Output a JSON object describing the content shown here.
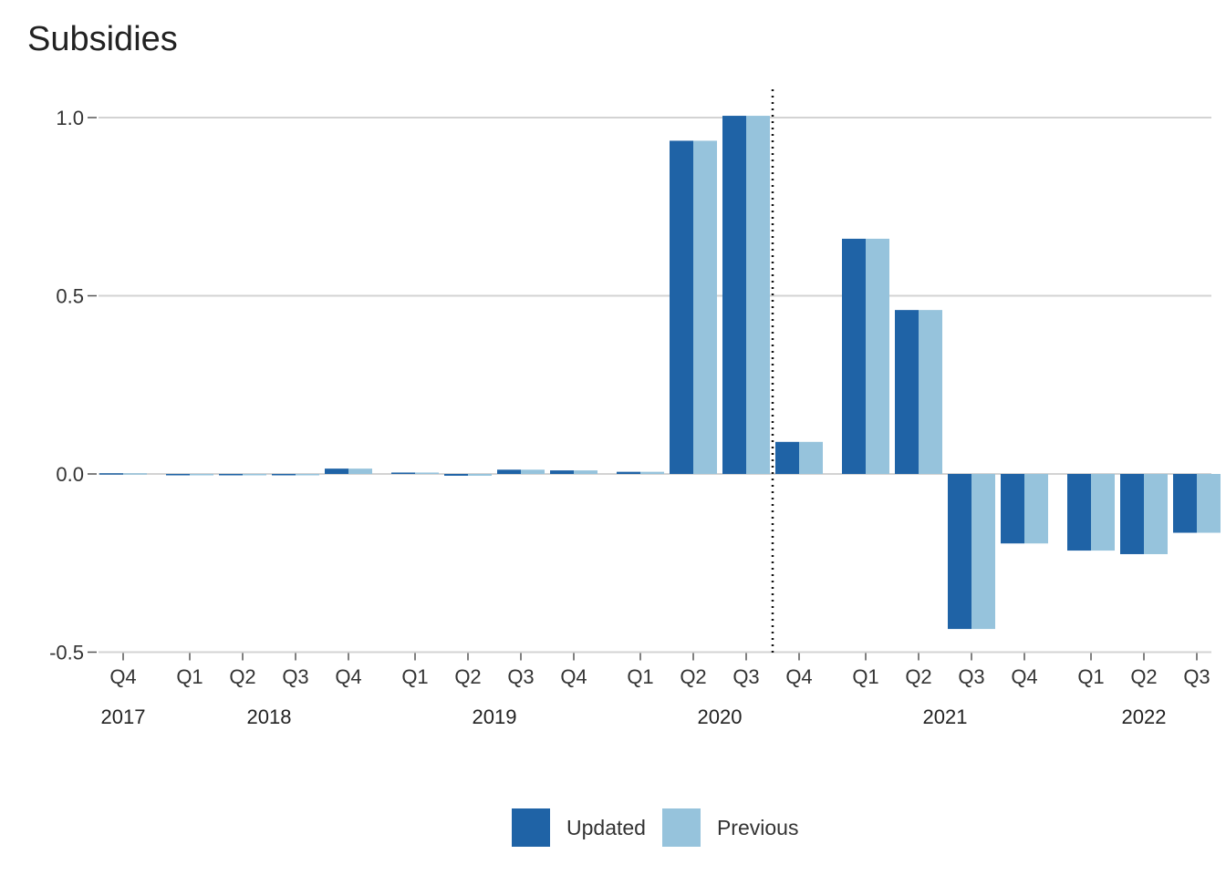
{
  "chart_data": {
    "type": "bar",
    "title": "Subsidies",
    "xlabel": "",
    "ylabel": "",
    "ylim": [
      -0.5,
      1.0
    ],
    "yticks": [
      -0.5,
      0.0,
      0.5,
      1.0
    ],
    "ytick_labels": [
      "-0.5",
      "0.0",
      "0.5",
      "1.0"
    ],
    "grid": true,
    "categories": [
      {
        "quarter": "Q4",
        "year": "2017"
      },
      {
        "quarter": "Q1",
        "year": "2018"
      },
      {
        "quarter": "Q2",
        "year": "2018"
      },
      {
        "quarter": "Q3",
        "year": "2018"
      },
      {
        "quarter": "Q4",
        "year": "2018"
      },
      {
        "quarter": "Q1",
        "year": "2019"
      },
      {
        "quarter": "Q2",
        "year": "2019"
      },
      {
        "quarter": "Q3",
        "year": "2019"
      },
      {
        "quarter": "Q4",
        "year": "2019"
      },
      {
        "quarter": "Q1",
        "year": "2020"
      },
      {
        "quarter": "Q2",
        "year": "2020"
      },
      {
        "quarter": "Q3",
        "year": "2020"
      },
      {
        "quarter": "Q4",
        "year": "2020"
      },
      {
        "quarter": "Q1",
        "year": "2021"
      },
      {
        "quarter": "Q2",
        "year": "2021"
      },
      {
        "quarter": "Q3",
        "year": "2021"
      },
      {
        "quarter": "Q4",
        "year": "2021"
      },
      {
        "quarter": "Q1",
        "year": "2022"
      },
      {
        "quarter": "Q2",
        "year": "2022"
      },
      {
        "quarter": "Q3",
        "year": "2022"
      }
    ],
    "years": [
      "2017",
      "2018",
      "2019",
      "2020",
      "2021",
      "2022"
    ],
    "series": [
      {
        "name": "Updated",
        "color": "#1f63a6",
        "values": [
          0.002,
          -0.003,
          -0.003,
          -0.003,
          0.015,
          0.004,
          -0.005,
          0.012,
          0.01,
          0.006,
          0.935,
          1.005,
          0.09,
          0.66,
          0.46,
          -0.435,
          -0.195,
          -0.215,
          -0.225,
          -0.165
        ]
      },
      {
        "name": "Previous",
        "color": "#96c3dc",
        "values": [
          0.002,
          -0.003,
          -0.003,
          -0.003,
          0.015,
          0.004,
          -0.005,
          0.012,
          0.01,
          0.006,
          0.935,
          1.005,
          0.09,
          0.66,
          0.46,
          -0.435,
          -0.195,
          -0.215,
          -0.225,
          -0.165
        ]
      }
    ],
    "vline_after_category": 11,
    "legend_position": "bottom"
  },
  "legend": {
    "items": [
      {
        "label": "Updated",
        "color": "#1f63a6"
      },
      {
        "label": "Previous",
        "color": "#96c3dc"
      }
    ]
  }
}
